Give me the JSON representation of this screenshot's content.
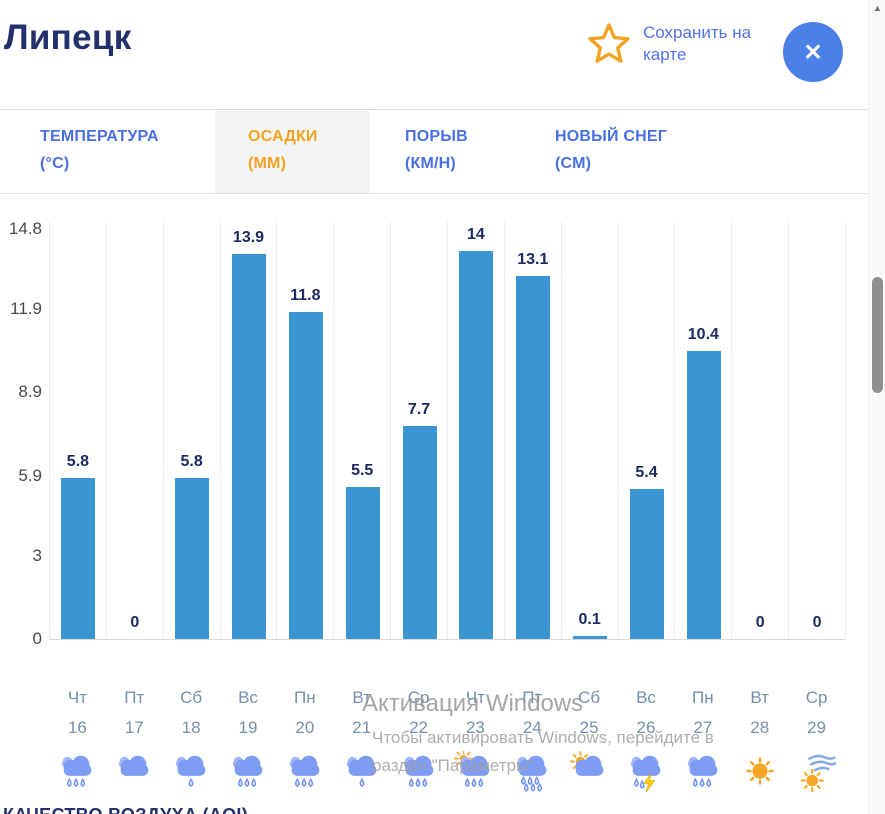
{
  "header": {
    "title": "Липецк",
    "save_link": "Сохранить на карте",
    "close_label": "✕"
  },
  "icons": {
    "scroll_up_arrow": "▲",
    "star_icon": "star-outline",
    "close_icon": "x-in-blue-circle"
  },
  "tabs": [
    {
      "label": "ТЕМПЕРАТУРА",
      "unit": "(°C)",
      "active": false
    },
    {
      "label": "ОСАДКИ",
      "unit": "(ММ)",
      "active": true
    },
    {
      "label": "ПОРЫВ",
      "unit": "(КМ/Н)",
      "active": false
    },
    {
      "label": "НОВЫЙ СНЕГ",
      "unit": "(СМ)",
      "active": false
    }
  ],
  "chart_data": {
    "type": "bar",
    "title": "ОСАДКИ (ММ)",
    "ylabel": "мм",
    "ylim": [
      0,
      14.8
    ],
    "yticks": [
      0,
      3,
      5.9,
      8.9,
      11.9,
      14.8
    ],
    "ytick_labels": [
      "0",
      "3",
      "5.9",
      "8.9",
      "11.9",
      "14.8"
    ],
    "grid": "vertical-only",
    "bar_color": "#3a96d2",
    "legend": "none",
    "categories": [
      {
        "day": "Чт",
        "date": "16",
        "icon": "rain3"
      },
      {
        "day": "Пт",
        "date": "17",
        "icon": "cloud"
      },
      {
        "day": "Сб",
        "date": "18",
        "icon": "rain1"
      },
      {
        "day": "Вс",
        "date": "19",
        "icon": "rain3"
      },
      {
        "day": "Пн",
        "date": "20",
        "icon": "rain3"
      },
      {
        "day": "Вт",
        "date": "21",
        "icon": "rain1"
      },
      {
        "day": "Ср",
        "date": "22",
        "icon": "rain3"
      },
      {
        "day": "Чт",
        "date": "23",
        "icon": "sun-rain"
      },
      {
        "day": "Пт",
        "date": "24",
        "icon": "rain-heavy"
      },
      {
        "day": "Сб",
        "date": "25",
        "icon": "sun-cloud"
      },
      {
        "day": "Вс",
        "date": "26",
        "icon": "thunder"
      },
      {
        "day": "Пн",
        "date": "27",
        "icon": "rain3"
      },
      {
        "day": "Вт",
        "date": "28",
        "icon": "sun"
      },
      {
        "day": "Ср",
        "date": "29",
        "icon": "wind"
      }
    ],
    "values": [
      5.8,
      0,
      5.8,
      13.9,
      11.8,
      5.5,
      7.7,
      14,
      13.1,
      0.1,
      5.4,
      10.4,
      0,
      0
    ],
    "value_labels": [
      "5.8",
      "0",
      "5.8",
      "13.9",
      "11.8",
      "5.5",
      "7.7",
      "14",
      "13.1",
      "0.1",
      "5.4",
      "10.4",
      "0",
      "0"
    ]
  },
  "watermark": {
    "line1": "Активация Windows",
    "line2": "Чтобы активировать Windows, перейдите в",
    "line3": "раздел \"Параметры\"."
  },
  "footer": {
    "next_section_title": "КАЧЕСТВО ВОЗДУХА (AQI)"
  },
  "colors": {
    "bar": "#3a96d2",
    "tab_blue": "#4a6fe3",
    "tab_active_orange": "#f2a321",
    "title_navy": "#24306b",
    "value_navy": "#1c2a63",
    "day_label": "#7590ad",
    "close_button": "#4a80e8",
    "star_orange": "#f2a321",
    "link_blue": "#5272e8"
  }
}
